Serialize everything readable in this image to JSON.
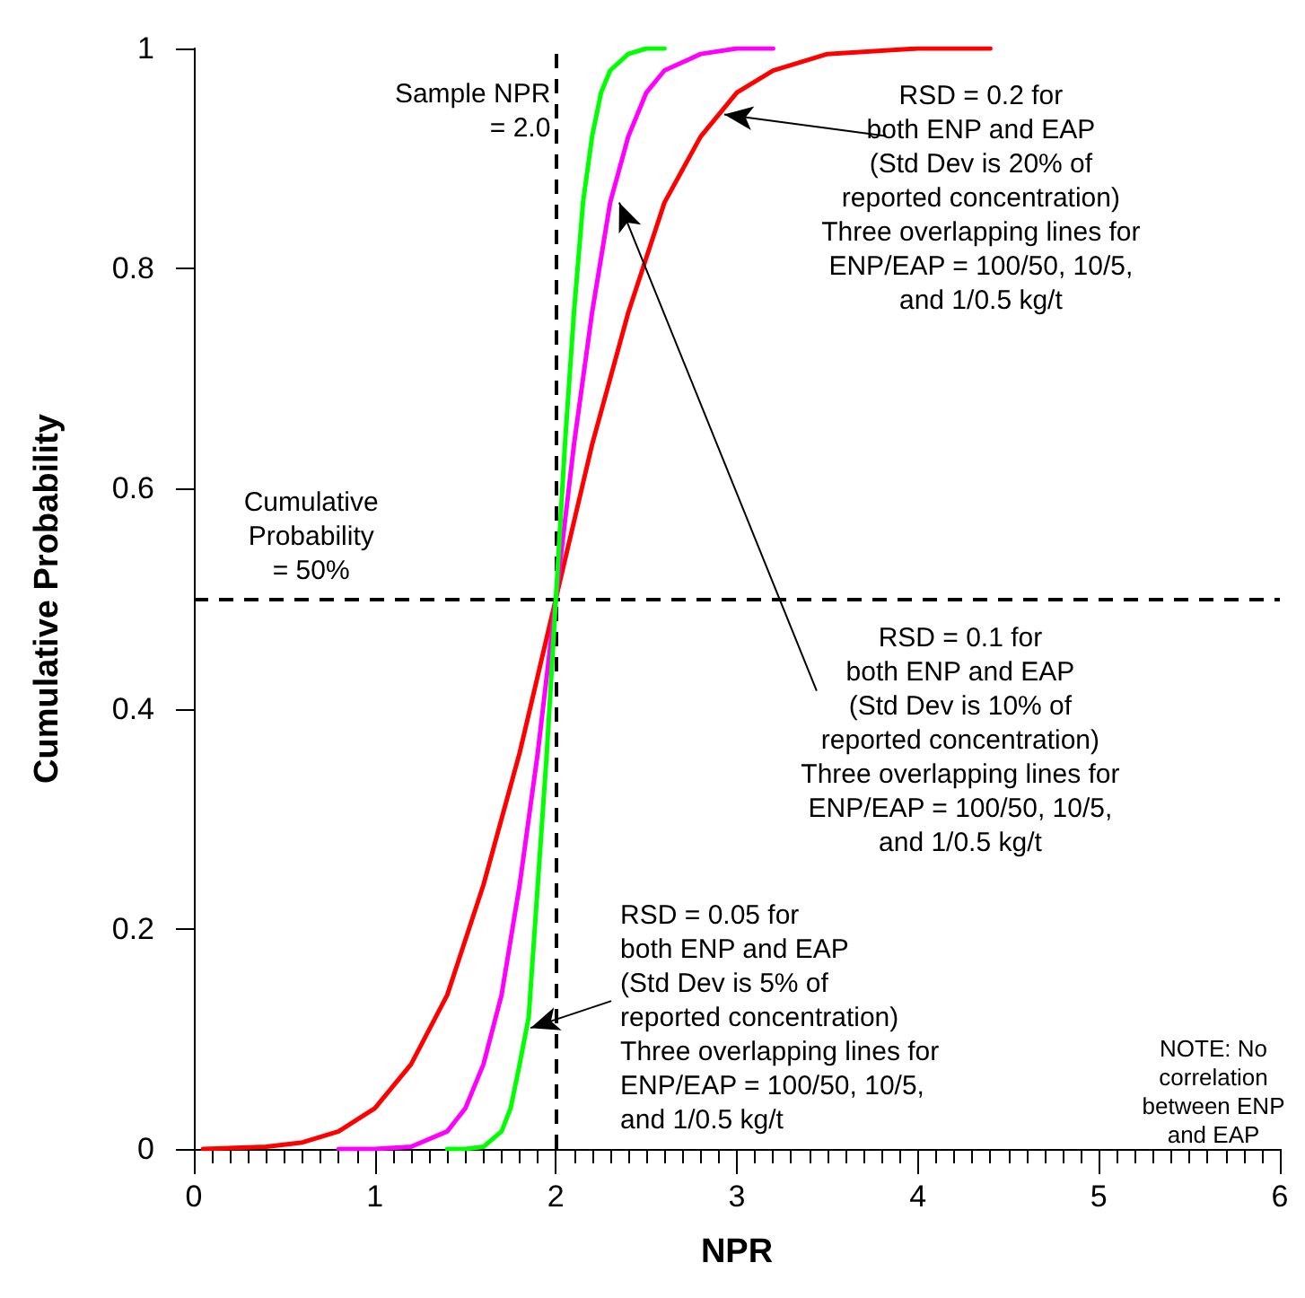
{
  "chart_data": {
    "type": "line",
    "xlabel": "NPR",
    "ylabel": "Cumulative Probability",
    "xlim": [
      0,
      6
    ],
    "ylim": [
      0,
      1
    ],
    "xticks": [
      0,
      1,
      2,
      3,
      4,
      5,
      6
    ],
    "yticks": [
      0,
      0.2,
      0.4,
      0.6,
      0.8,
      1
    ],
    "grid": false,
    "marker": "none",
    "line_style": "solid",
    "series": [
      {
        "color": "#ff0000",
        "x": [
          0.05,
          0.4,
          0.6,
          0.8,
          1.0,
          1.2,
          1.4,
          1.6,
          1.8,
          2.0,
          2.2,
          2.4,
          2.6,
          2.8,
          3.0,
          3.2,
          3.5,
          4.0,
          4.4
        ],
        "values": [
          0,
          0.002,
          0.006,
          0.016,
          0.037,
          0.077,
          0.14,
          0.24,
          0.36,
          0.5,
          0.64,
          0.76,
          0.86,
          0.92,
          0.96,
          0.98,
          0.995,
          1,
          1
        ]
      },
      {
        "color": "#ff00ff",
        "x": [
          0.8,
          1.0,
          1.2,
          1.4,
          1.5,
          1.6,
          1.7,
          1.8,
          1.9,
          2.0,
          2.1,
          2.2,
          2.3,
          2.4,
          2.5,
          2.6,
          2.8,
          3.0,
          3.2
        ],
        "values": [
          0,
          0,
          0.002,
          0.016,
          0.037,
          0.077,
          0.14,
          0.24,
          0.36,
          0.5,
          0.64,
          0.76,
          0.86,
          0.92,
          0.96,
          0.98,
          0.995,
          1,
          1
        ]
      },
      {
        "color": "#00ff00",
        "x": [
          1.4,
          1.5,
          1.6,
          1.7,
          1.75,
          1.8,
          1.85,
          1.9,
          1.95,
          2.0,
          2.05,
          2.1,
          2.15,
          2.2,
          2.25,
          2.3,
          2.4,
          2.5,
          2.6
        ],
        "values": [
          0,
          0,
          0.002,
          0.016,
          0.037,
          0.077,
          0.12,
          0.24,
          0.36,
          0.5,
          0.64,
          0.76,
          0.86,
          0.92,
          0.96,
          0.98,
          0.995,
          1,
          1
        ]
      }
    ],
    "ref_lines": [
      {
        "axis": "x",
        "value": 2,
        "label": "Sample NPR\n= 2.0",
        "color": "#000000",
        "line_style": "dashed"
      },
      {
        "axis": "y",
        "value": 0.5,
        "label": "Cumulative\nProbability\n= 50%",
        "color": "#000000",
        "line_style": "dashed"
      }
    ],
    "annotations": [
      {
        "text": "RSD = 0.2 for\nboth ENP and EAP\n(Std Dev is 20% of\nreported concentration)\nThree overlapping lines for\nENP/EAP = 100/50, 10/5,\nand 1/0.5 kg/t",
        "x": 2.93,
        "y": 0.94
      },
      {
        "text": "RSD = 0.1 for\nboth ENP and EAP\n(Std Dev is 10% of\nreported concentration)\nThree overlapping lines for\nENP/EAP = 100/50, 10/5,\nand 1/0.5 kg/t",
        "x": 2.35,
        "y": 0.86
      },
      {
        "text": "RSD = 0.05 for\nboth ENP and EAP\n(Std Dev is 5% of\nreported concentration)\nThree overlapping lines for\nENP/EAP = 100/50, 10/5,\nand 1/0.5 kg/t",
        "x": 1.86,
        "y": 0.11
      },
      "NOTE: No\ncorrelation\nbetween ENP\nand EAP"
    ]
  }
}
